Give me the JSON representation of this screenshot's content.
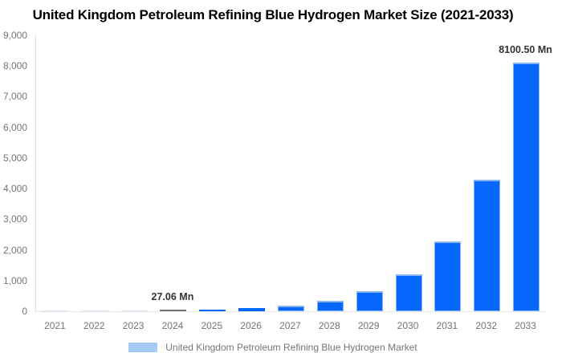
{
  "title": "United Kingdom Petroleum Refining Blue Hydrogen Market Size (2021-2033)",
  "legend": {
    "label": "United Kingdom Petroleum Refining Blue Hydrogen Market"
  },
  "chart_data": {
    "type": "bar",
    "title": "United Kingdom Petroleum Refining Blue Hydrogen Market Size (2021-2033)",
    "unit": "Mn",
    "categories": [
      "2021",
      "2022",
      "2023",
      "2024",
      "2025",
      "2026",
      "2027",
      "2028",
      "2029",
      "2030",
      "2031",
      "2032",
      "2033"
    ],
    "values": [
      4.05,
      7.63,
      14.37,
      27.06,
      50.99,
      96.07,
      181.02,
      341.08,
      642.66,
      1210.94,
      2281.63,
      4299.19,
      8100.5
    ],
    "labeled_points": [
      {
        "index": 3,
        "category": "2024",
        "text": "27.06 Mn"
      },
      {
        "index": 12,
        "category": "2033",
        "text": "8100.50 Mn"
      }
    ],
    "highlight_index": 3,
    "ylim": [
      0,
      9000
    ],
    "y_ticks": [
      0,
      1000,
      2000,
      3000,
      4000,
      5000,
      6000,
      7000,
      8000,
      9000
    ],
    "y_tick_labels": [
      "0",
      "1,000",
      "2,000",
      "3,000",
      "4,000",
      "5,000",
      "6,000",
      "7,000",
      "8,000",
      "9,000"
    ],
    "xlabel": "",
    "ylabel": "",
    "grid": false,
    "legend_position": "bottom",
    "legend_entries": [
      "United Kingdom Petroleum Refining Blue Hydrogen Market"
    ]
  },
  "colors": {
    "bar": "#0667fd",
    "bar_stroke": "#8ab5f3",
    "bar_highlight": "#757575",
    "bar_faint": "#d9e6f8",
    "legend_swatch": "#a3cbf5",
    "axis_text": "#757575",
    "axis_line": "#e0e0e0",
    "annotation_text": "#333333",
    "title_text": "#000000"
  }
}
